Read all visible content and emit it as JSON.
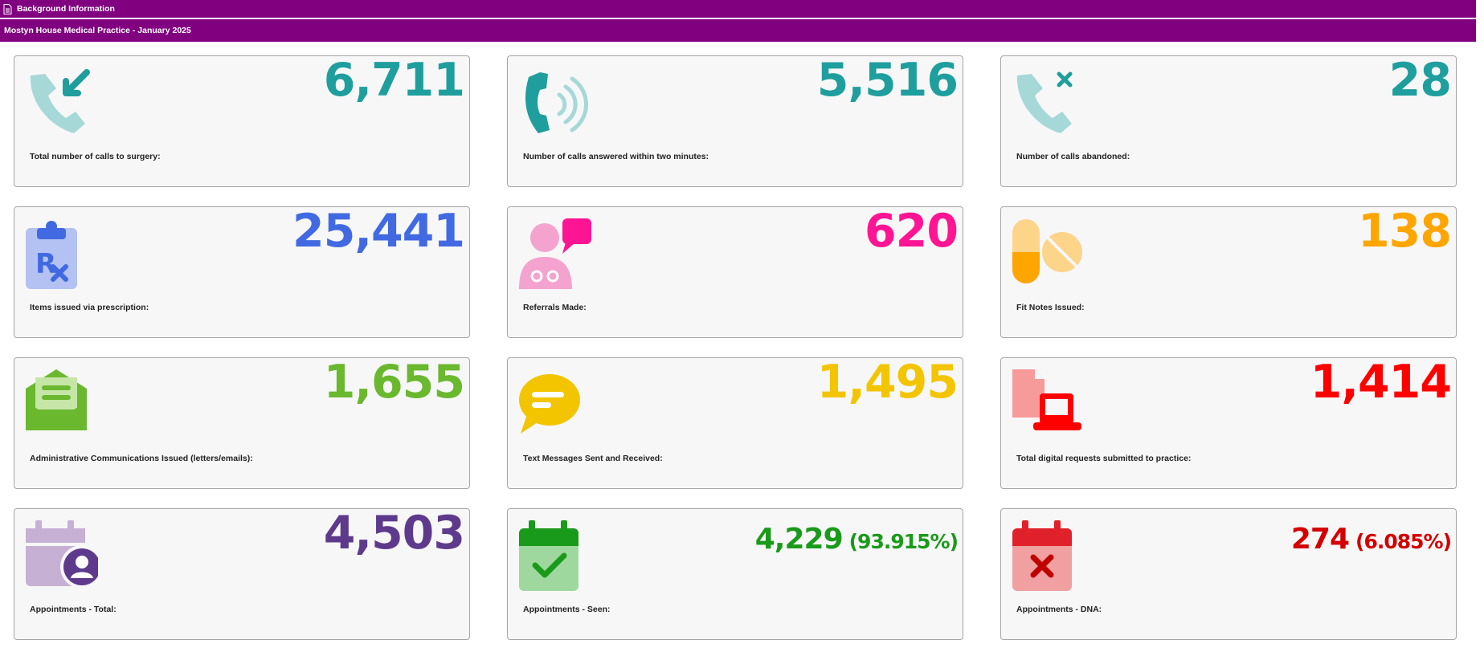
{
  "header": {
    "title": "Background Information",
    "subtitle": "Mostyn House Medical Practice - January 2025"
  },
  "cards": [
    {
      "value": "6,711",
      "label": "Total number of calls to surgery:",
      "color": "#1f9e9e",
      "icon": "incoming-call-icon"
    },
    {
      "value": "5,516",
      "label": "Number of calls answered within two minutes:",
      "color": "#1f9e9e",
      "icon": "phone-ringing-icon"
    },
    {
      "value": "28",
      "label": "Number of calls abandoned:",
      "color": "#1f9e9e",
      "icon": "missed-call-icon"
    },
    {
      "value": "25,441",
      "label": "Items issued via prescription:",
      "color": "#4169e1",
      "icon": "prescription-clipboard-icon"
    },
    {
      "value": "620",
      "label": "Referrals Made:",
      "color": "#ff1493",
      "icon": "doctor-speech-icon"
    },
    {
      "value": "138",
      "label": "Fit Notes Issued:",
      "color": "#ffa500",
      "icon": "pills-icon"
    },
    {
      "value": "1,655",
      "label": "Administrative Communications Issued (letters/emails):",
      "color": "#6ab82e",
      "icon": "envelope-letter-icon"
    },
    {
      "value": "1,495",
      "label": "Text Messages Sent and Received:",
      "color": "#f2c500",
      "icon": "speech-bubble-icon"
    },
    {
      "value": "1,414",
      "label": "Total digital requests submitted to practice:",
      "color": "#ff0000",
      "icon": "file-laptop-icon"
    },
    {
      "value": "4,503",
      "label": "Appointments - Total:",
      "color": "#5e3a8c",
      "icon": "calendar-person-icon"
    },
    {
      "value": "4,229",
      "percent": "(93.915%)",
      "label": "Appointments - Seen:",
      "color": "#1a9a1a",
      "icon": "calendar-check-icon"
    },
    {
      "value": "274",
      "percent": "(6.085%)",
      "label": "Appointments - DNA:",
      "color": "#d40000",
      "icon": "calendar-cross-icon"
    }
  ]
}
